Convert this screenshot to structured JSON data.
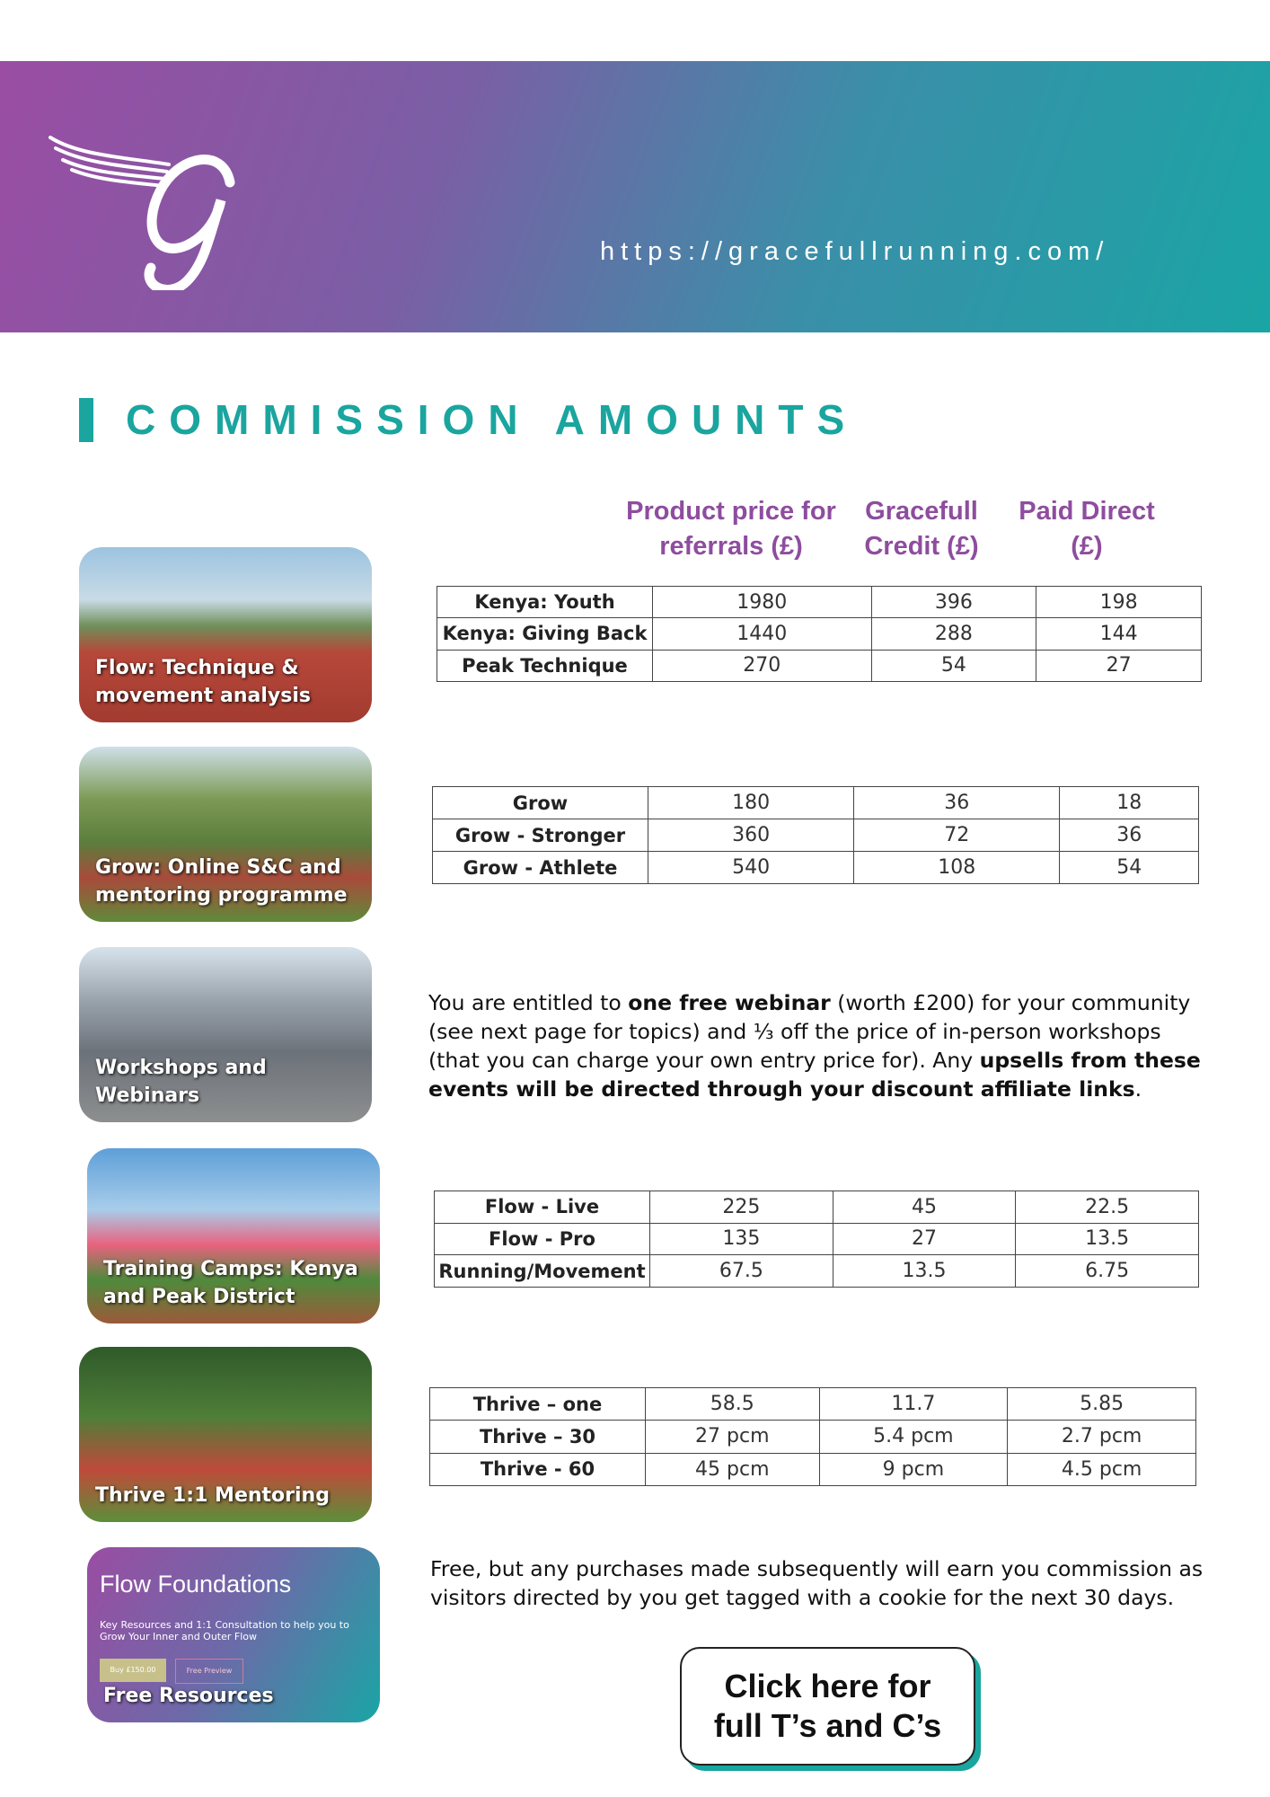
{
  "header": {
    "url": "https://gracefullrunning.com/"
  },
  "section_title": "COMMISSION AMOUNTS",
  "column_headers": [
    "Product price for referrals (£)",
    "Gracefull Credit (£)",
    "Paid Direct (£)"
  ],
  "cards": [
    {
      "caption": "Flow: Technique & movement analysis"
    },
    {
      "caption": "Grow: Online S&C and mentoring programme"
    },
    {
      "caption": "Workshops and Webinars"
    },
    {
      "caption": "Training Camps: Kenya and Peak District"
    },
    {
      "caption": "Thrive 1:1 Mentoring"
    },
    {
      "caption": "Free Resources",
      "heading": "Flow Foundations",
      "description": "Key Resources and 1:1 Consultation to help you to Grow Your Inner and Outer Flow",
      "buy_button": "Buy £150.00",
      "preview_button": "Free Preview"
    }
  ],
  "tables": [
    {
      "rows": [
        [
          "Kenya: Youth",
          1980,
          396,
          198
        ],
        [
          "Kenya: Giving Back",
          1440,
          288,
          144
        ],
        [
          "Peak Technique",
          270,
          54,
          27
        ]
      ]
    },
    {
      "rows": [
        [
          "Grow",
          180,
          36,
          18
        ],
        [
          "Grow - Stronger",
          360,
          72,
          36
        ],
        [
          "Grow - Athlete",
          540,
          108,
          54
        ]
      ]
    },
    {
      "rows": [
        [
          "Flow - Live",
          225,
          45,
          22.5
        ],
        [
          "Flow - Pro",
          135,
          27,
          13.5
        ],
        [
          "Running/Movement",
          67.5,
          13.5,
          6.75
        ]
      ]
    },
    {
      "rows": [
        [
          "Thrive – one",
          58.5,
          11.7,
          5.85
        ],
        [
          "Thrive – 30",
          "27 pcm",
          "5.4 pcm",
          "2.7 pcm"
        ],
        [
          "Thrive - 60",
          "45 pcm",
          "9 pcm",
          "4.5 pcm"
        ]
      ]
    }
  ],
  "webinar_text": [
    {
      "text": "You are entitled to "
    },
    {
      "text": "one free webinar",
      "bold": true
    },
    {
      "text": " (worth £200) for your community (see next page for topics) and ⅓ off the price of in-person workshops (that you can charge your own entry price for). Any "
    },
    {
      "text": "upsells from these events will be directed through your  discount affiliate links",
      "bold": true
    },
    {
      "text": "."
    }
  ],
  "free_text": "Free, but any purchases made subsequently will earn you commission as visitors directed by you get tagged with a cookie for the next 30 days.",
  "button": "Click here for full T’s and C’s"
}
